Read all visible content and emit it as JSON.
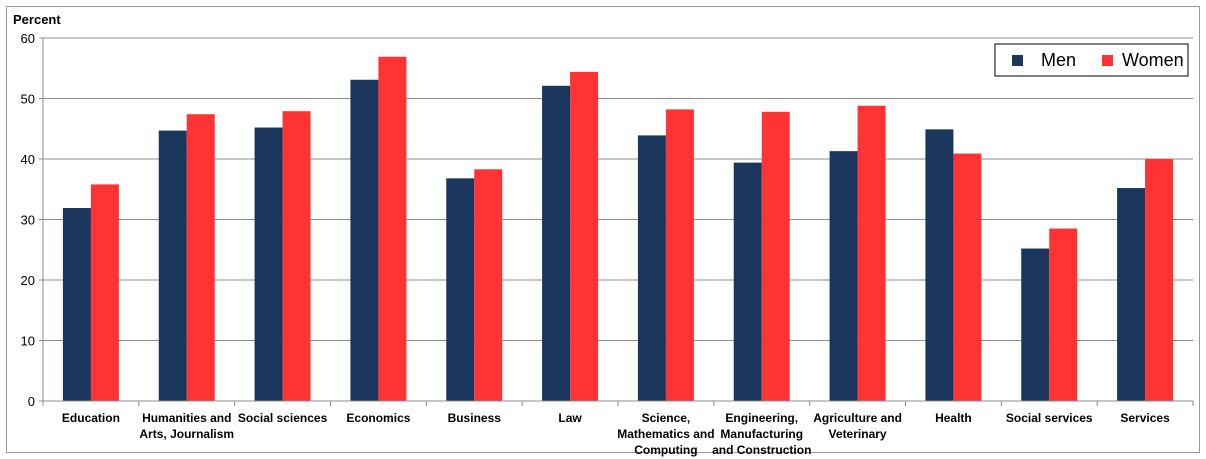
{
  "chart_data": {
    "type": "bar",
    "ylabel": "Percent",
    "ylim": [
      0,
      60
    ],
    "yticks": [
      0,
      10,
      20,
      30,
      40,
      50,
      60
    ],
    "grid": true,
    "legend_position": "top-right",
    "categories": [
      [
        "Education"
      ],
      [
        "Humanities and",
        "Arts, Journalism"
      ],
      [
        "Social sciences"
      ],
      [
        "Economics"
      ],
      [
        "Business"
      ],
      [
        "Law"
      ],
      [
        "Science,",
        "Mathematics and",
        "Computing"
      ],
      [
        "Engineering,",
        "Manufacturing",
        "and Construction"
      ],
      [
        "Agriculture and",
        "Veterinary"
      ],
      [
        "Health"
      ],
      [
        "Social services"
      ],
      [
        "Services"
      ]
    ],
    "series": [
      {
        "name": "Men",
        "color": "#1b365d",
        "values": [
          31.9,
          44.7,
          45.2,
          53.1,
          36.8,
          52.1,
          43.9,
          39.4,
          41.3,
          44.9,
          25.2,
          35.2
        ]
      },
      {
        "name": "Women",
        "color": "#ff3333",
        "values": [
          35.8,
          47.4,
          47.9,
          56.9,
          38.3,
          54.4,
          48.2,
          47.8,
          48.8,
          40.9,
          28.5,
          40.0
        ]
      }
    ]
  }
}
